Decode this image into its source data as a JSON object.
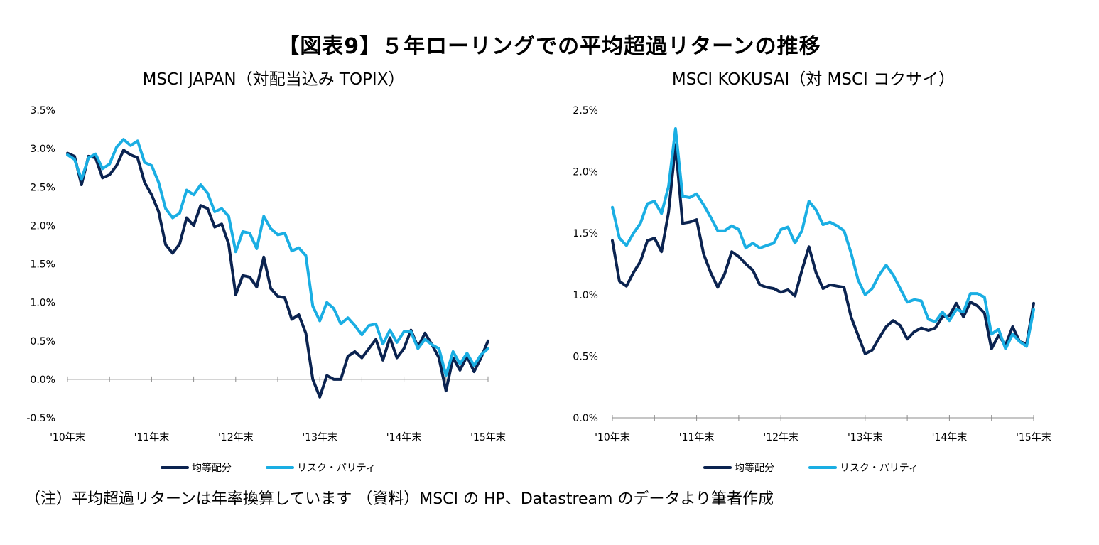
{
  "title": "【図表9】５年ローリングでの平均超過リターンの推移",
  "note": "（注）平均超過リターンは年率換算しています （資料）MSCI の HP、Datastream のデータより筆者作成",
  "colors": {
    "equal": "#0b2350",
    "risk": "#1aaee3"
  },
  "chart_data": [
    {
      "type": "line",
      "title": "MSCI JAPAN（対配当込み TOPIX）",
      "x_labels": [
        "'10年末",
        "'11年末",
        "'12年末",
        "'13年末",
        "'14年末",
        "'15年末"
      ],
      "y_ticks": [
        "3.5%",
        "3.0%",
        "2.5%",
        "2.0%",
        "1.5%",
        "1.0%",
        "0.5%",
        "0.0%",
        "-0.5%"
      ],
      "ylim": [
        -0.5,
        3.5
      ],
      "months": 61,
      "legend": [
        "均等配分",
        "リスク・パリティ"
      ],
      "series": [
        {
          "name": "均等配分",
          "color": "#0b2350",
          "values": [
            2.94,
            2.9,
            2.53,
            2.9,
            2.88,
            2.62,
            2.66,
            2.78,
            2.98,
            2.92,
            2.88,
            2.56,
            2.4,
            2.18,
            1.75,
            1.64,
            1.76,
            2.1,
            2.0,
            2.26,
            2.22,
            1.98,
            2.02,
            1.76,
            1.1,
            1.35,
            1.33,
            1.2,
            1.59,
            1.18,
            1.08,
            1.06,
            0.78,
            0.84,
            0.6,
            0.0,
            -0.23,
            0.05,
            0.0,
            0.0,
            0.3,
            0.36,
            0.28,
            0.4,
            0.52,
            0.25,
            0.54,
            0.28,
            0.4,
            0.64,
            0.42,
            0.6,
            0.45,
            0.28,
            -0.15,
            0.28,
            0.12,
            0.3,
            0.1,
            0.28,
            0.5
          ]
        },
        {
          "name": "リスク・パリティ",
          "color": "#1aaee3",
          "values": [
            2.92,
            2.86,
            2.6,
            2.88,
            2.93,
            2.74,
            2.8,
            3.02,
            3.12,
            3.04,
            3.1,
            2.82,
            2.78,
            2.56,
            2.22,
            2.1,
            2.16,
            2.46,
            2.4,
            2.53,
            2.42,
            2.18,
            2.22,
            2.12,
            1.66,
            1.92,
            1.9,
            1.7,
            2.12,
            1.96,
            1.88,
            1.9,
            1.67,
            1.71,
            1.61,
            0.95,
            0.76,
            1.0,
            0.92,
            0.72,
            0.8,
            0.7,
            0.58,
            0.7,
            0.72,
            0.46,
            0.64,
            0.48,
            0.62,
            0.62,
            0.4,
            0.52,
            0.45,
            0.4,
            0.05,
            0.36,
            0.2,
            0.34,
            0.18,
            0.32,
            0.4
          ]
        }
      ]
    },
    {
      "type": "line",
      "title": "MSCI KOKUSAI（対 MSCI コクサイ）",
      "x_labels": [
        "'10年末",
        "'11年末",
        "'12年末",
        "'13年末",
        "'14年末",
        "'15年末"
      ],
      "y_ticks": [
        "2.5%",
        "2.0%",
        "1.5%",
        "1.0%",
        "0.5%",
        "0.0%"
      ],
      "ylim": [
        0.0,
        2.5
      ],
      "months": 61,
      "legend": [
        "均等配分",
        "リスク・パリティ"
      ],
      "series": [
        {
          "name": "均等配分",
          "color": "#0b2350",
          "values": [
            1.44,
            1.11,
            1.07,
            1.18,
            1.27,
            1.44,
            1.46,
            1.35,
            1.67,
            2.22,
            1.58,
            1.59,
            1.61,
            1.33,
            1.18,
            1.06,
            1.17,
            1.35,
            1.31,
            1.25,
            1.2,
            1.08,
            1.06,
            1.05,
            1.02,
            1.04,
            0.99,
            1.2,
            1.39,
            1.18,
            1.05,
            1.08,
            1.07,
            1.06,
            0.82,
            0.67,
            0.52,
            0.55,
            0.65,
            0.74,
            0.79,
            0.75,
            0.64,
            0.7,
            0.73,
            0.71,
            0.73,
            0.82,
            0.83,
            0.93,
            0.82,
            0.94,
            0.91,
            0.85,
            0.56,
            0.67,
            0.59,
            0.74,
            0.62,
            0.6,
            0.93
          ]
        },
        {
          "name": "リスク・パリティ",
          "color": "#1aaee3",
          "values": [
            1.71,
            1.46,
            1.4,
            1.5,
            1.58,
            1.74,
            1.76,
            1.66,
            1.88,
            2.35,
            1.8,
            1.79,
            1.82,
            1.73,
            1.63,
            1.52,
            1.52,
            1.56,
            1.53,
            1.38,
            1.42,
            1.38,
            1.4,
            1.42,
            1.53,
            1.55,
            1.42,
            1.52,
            1.76,
            1.69,
            1.57,
            1.59,
            1.56,
            1.52,
            1.34,
            1.12,
            1.0,
            1.05,
            1.16,
            1.24,
            1.16,
            1.05,
            0.94,
            0.96,
            0.95,
            0.8,
            0.78,
            0.86,
            0.79,
            0.88,
            0.86,
            1.01,
            1.01,
            0.98,
            0.68,
            0.72,
            0.56,
            0.68,
            0.62,
            0.58,
            0.88
          ]
        }
      ]
    }
  ]
}
